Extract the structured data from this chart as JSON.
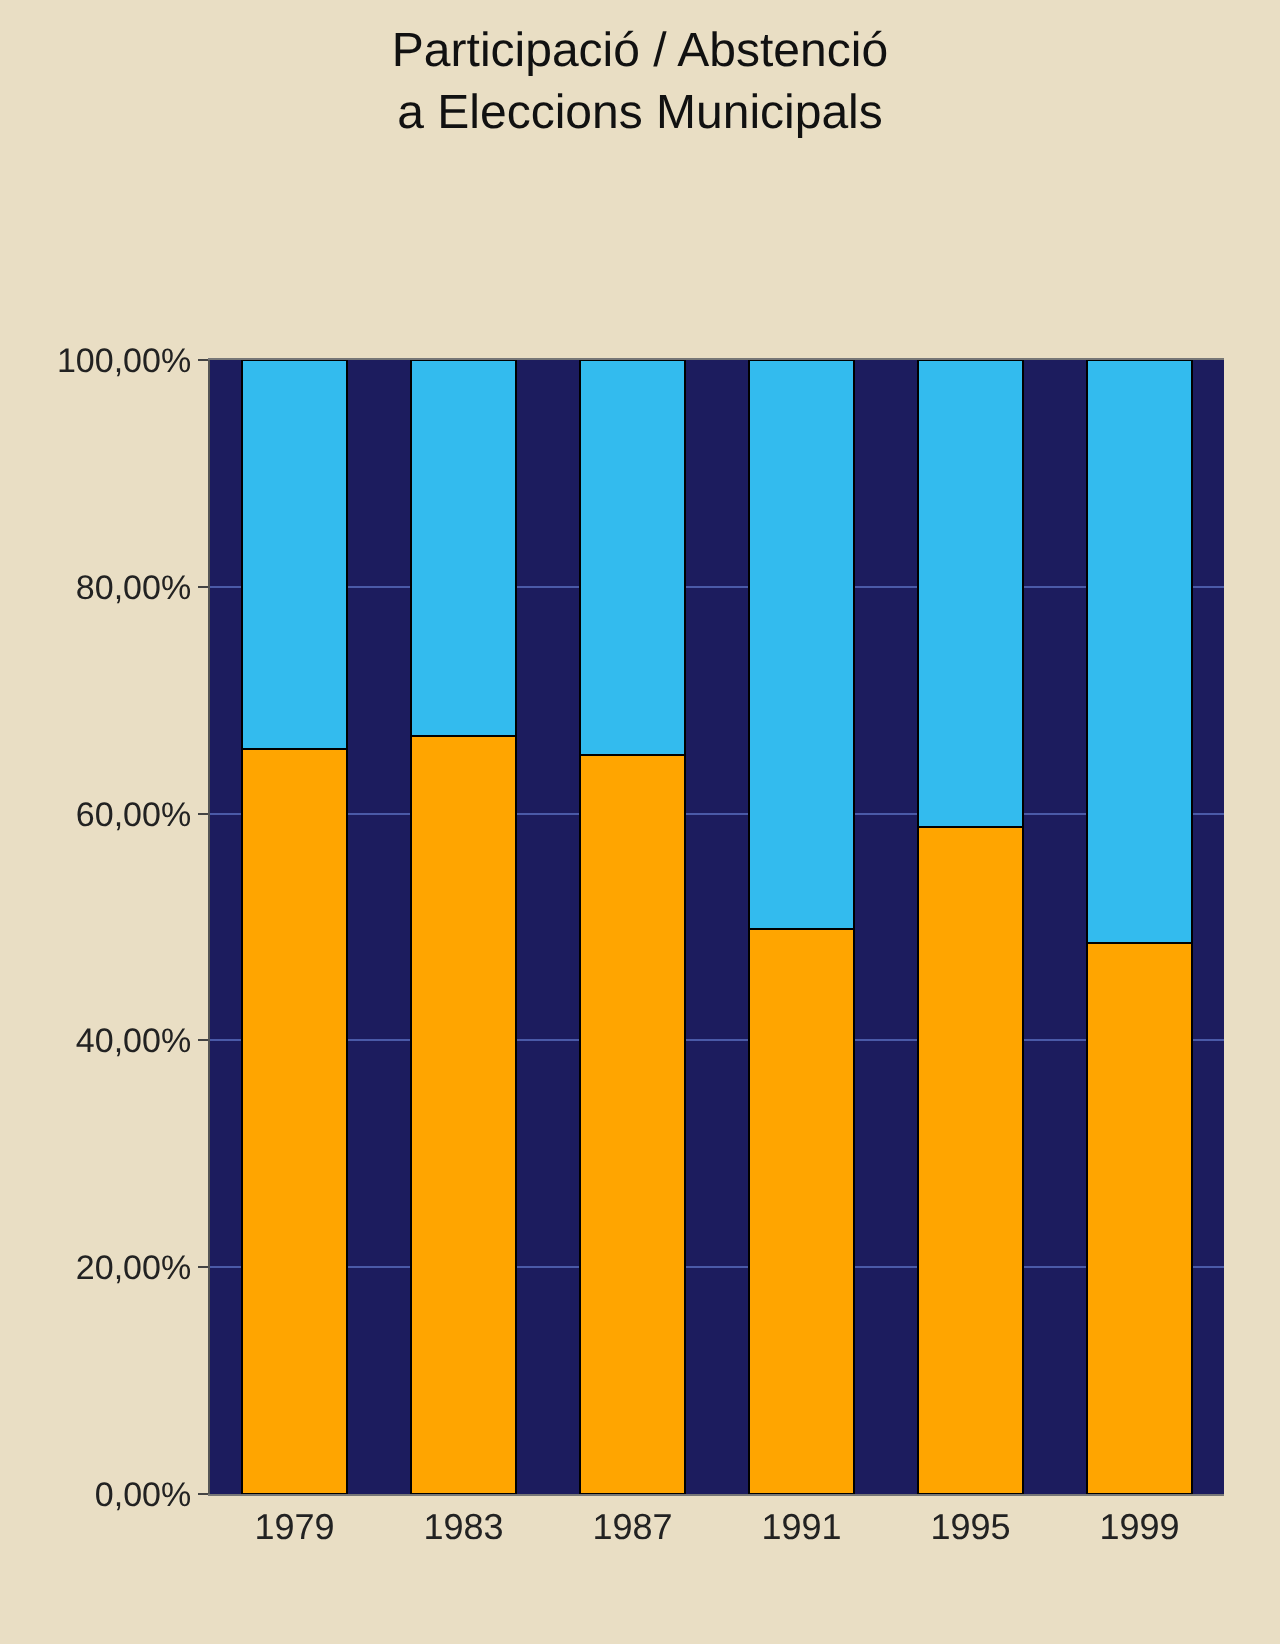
{
  "chart_data": {
    "type": "bar",
    "title": "Participació / Abstenció\na Eleccions Municipals",
    "stacked": true,
    "categories": [
      "1979",
      "1983",
      "1987",
      "1991",
      "1995",
      "1999"
    ],
    "series": [
      {
        "color": "#ffa500",
        "values": [
          65.7,
          66.8,
          65.2,
          49.8,
          58.8,
          48.6
        ]
      },
      {
        "color": "#33bbee",
        "values": [
          34.3,
          33.2,
          34.8,
          50.2,
          41.2,
          51.4
        ]
      }
    ],
    "ylim": [
      0,
      100
    ],
    "yticks": [
      {
        "value": 0,
        "label": "0,00%"
      },
      {
        "value": 20,
        "label": "20,00%"
      },
      {
        "value": 40,
        "label": "40,00%"
      },
      {
        "value": 60,
        "label": "60,00%"
      },
      {
        "value": 80,
        "label": "80,00%"
      },
      {
        "value": 100,
        "label": "100,00%"
      }
    ],
    "grid": "y"
  }
}
